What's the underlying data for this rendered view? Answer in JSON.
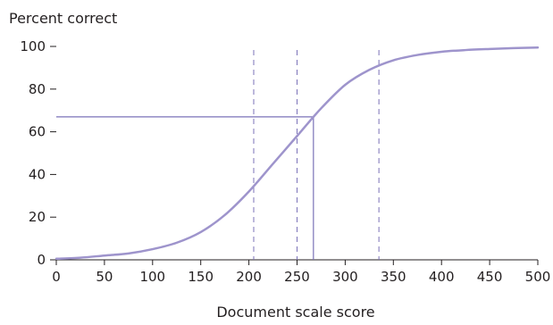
{
  "chart_data": {
    "type": "line",
    "xlabel": "Document scale score",
    "ylabel": "Percent correct",
    "xlim": [
      0,
      500
    ],
    "ylim": [
      0,
      100
    ],
    "x_ticks": [
      0,
      50,
      100,
      150,
      200,
      250,
      300,
      350,
      400,
      450,
      500
    ],
    "y_ticks": [
      0,
      20,
      40,
      60,
      80,
      100
    ],
    "grid": false,
    "series": [
      {
        "color": "#9e94cc",
        "x": [
          0,
          25,
          50,
          75,
          100,
          125,
          150,
          175,
          200,
          225,
          250,
          275,
          300,
          325,
          350,
          375,
          400,
          425,
          450,
          475,
          500
        ],
        "y": [
          0.5,
          1,
          2,
          3,
          5,
          8,
          13,
          21,
          32,
          45,
          58,
          71,
          82,
          89,
          93.5,
          96,
          97.5,
          98.3,
          98.8,
          99.2,
          99.5
        ]
      }
    ],
    "reference_lines": {
      "vertical_dashed": [
        205,
        250,
        335
      ],
      "marker_point": {
        "x": 267,
        "y": 67
      },
      "color": "#7b72b8"
    }
  }
}
